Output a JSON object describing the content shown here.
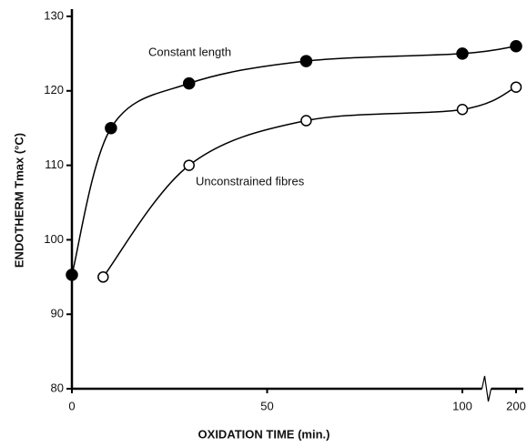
{
  "chart_data": {
    "type": "line",
    "xlabel": "OXIDATION TIME  (min.)",
    "ylabel": "ENDOTHERM  Tmax (°C)",
    "xlim": [
      0,
      200
    ],
    "xticks": [
      0,
      50,
      100,
      200
    ],
    "ylim": [
      80,
      130
    ],
    "yticks": [
      80,
      90,
      100,
      110,
      120,
      130
    ],
    "series": [
      {
        "name": "Constant length",
        "color": "#000000",
        "marker": "filled",
        "x": [
          0,
          10,
          30,
          60,
          100,
          200
        ],
        "values": [
          95.3,
          115,
          121,
          124,
          125,
          126
        ]
      },
      {
        "name": "Unconstrained fibres",
        "color": "#000000",
        "marker": "open",
        "x": [
          8,
          30,
          60,
          100,
          200
        ],
        "values": [
          95,
          110,
          116,
          117.5,
          120.5
        ]
      }
    ]
  }
}
